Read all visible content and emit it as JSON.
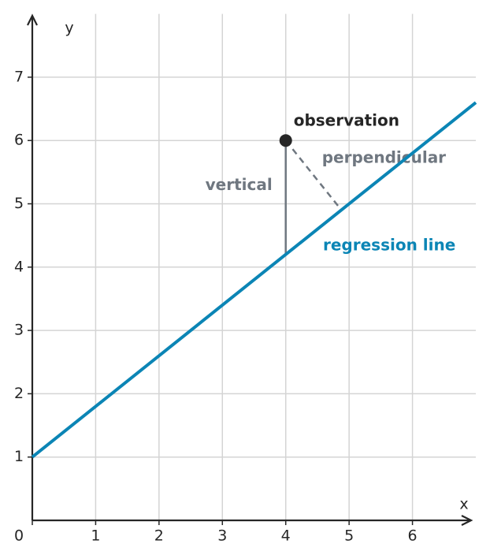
{
  "chart_data": {
    "type": "line",
    "x_label": "x",
    "y_label": "y",
    "xlim": [
      0,
      7
    ],
    "ylim": [
      0,
      8
    ],
    "xticks": [
      0,
      1,
      2,
      3,
      4,
      5,
      6
    ],
    "yticks": [
      1,
      2,
      3,
      4,
      5,
      6,
      7
    ],
    "grid": true,
    "series": [
      {
        "name": "regression line",
        "color": "#0b85b5",
        "x": [
          0,
          7
        ],
        "values": [
          1,
          6.6
        ]
      },
      {
        "name": "observation",
        "color": "#262626",
        "x": [
          4
        ],
        "values": [
          6
        ]
      }
    ],
    "annotations": [
      {
        "label": "vertical",
        "color": "#6f7780",
        "x": [
          4,
          4
        ],
        "values": [
          6,
          4.2
        ]
      },
      {
        "label": "perpendicular",
        "color": "#6f7780",
        "x": [
          4,
          4.878
        ],
        "values": [
          6,
          4.902
        ]
      }
    ]
  }
}
